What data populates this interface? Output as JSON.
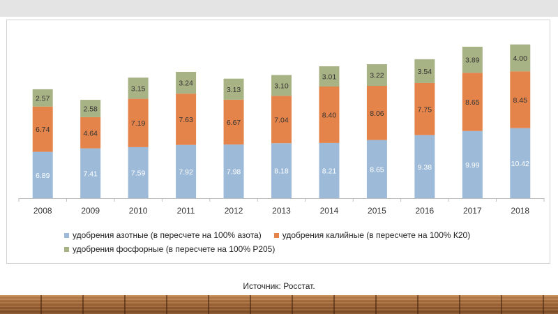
{
  "chart_data": {
    "type": "bar",
    "stacked": true,
    "categories": [
      "2008",
      "2009",
      "2010",
      "2011",
      "2012",
      "2013",
      "2014",
      "2015",
      "2016",
      "2017",
      "2018"
    ],
    "series": [
      {
        "name": "удобрения азотные (в пересчете на 100% азота)",
        "color": "#9dbbd9",
        "values": [
          6.89,
          7.41,
          7.59,
          7.92,
          7.98,
          8.18,
          8.21,
          8.65,
          9.38,
          9.99,
          10.42
        ],
        "labels": [
          "6.89",
          "7.41",
          "7.59",
          "7.92",
          "7.98",
          "8.18",
          "8.21",
          "8.65",
          "9.38",
          "9.99",
          "10.42"
        ]
      },
      {
        "name": "удобрения калийные (в пересчете на 100% К20)",
        "color": "#e4844b",
        "values": [
          6.74,
          4.64,
          7.19,
          7.63,
          6.67,
          7.04,
          8.4,
          8.06,
          7.75,
          8.65,
          8.45
        ],
        "labels": [
          "6.74",
          "4.64",
          "7.19",
          "7.63",
          "6.67",
          "7.04",
          "8.40",
          "8.06",
          "7.75",
          "8.65",
          "8.45"
        ]
      },
      {
        "name": "удобрения фосфорные (в пересчете на 100% Р205)",
        "color": "#a7b384",
        "values": [
          2.57,
          2.58,
          3.15,
          3.24,
          3.13,
          3.1,
          3.01,
          3.22,
          3.54,
          3.89,
          4.0
        ],
        "labels": [
          "2.57",
          "2.58",
          "3.15",
          "3.24",
          "3.13",
          "3.10",
          "3.01",
          "3.22",
          "3.54",
          "3.89",
          "4.00"
        ]
      }
    ],
    "legend": "bottom",
    "grid": false
  },
  "source": "Источник: Росстат."
}
